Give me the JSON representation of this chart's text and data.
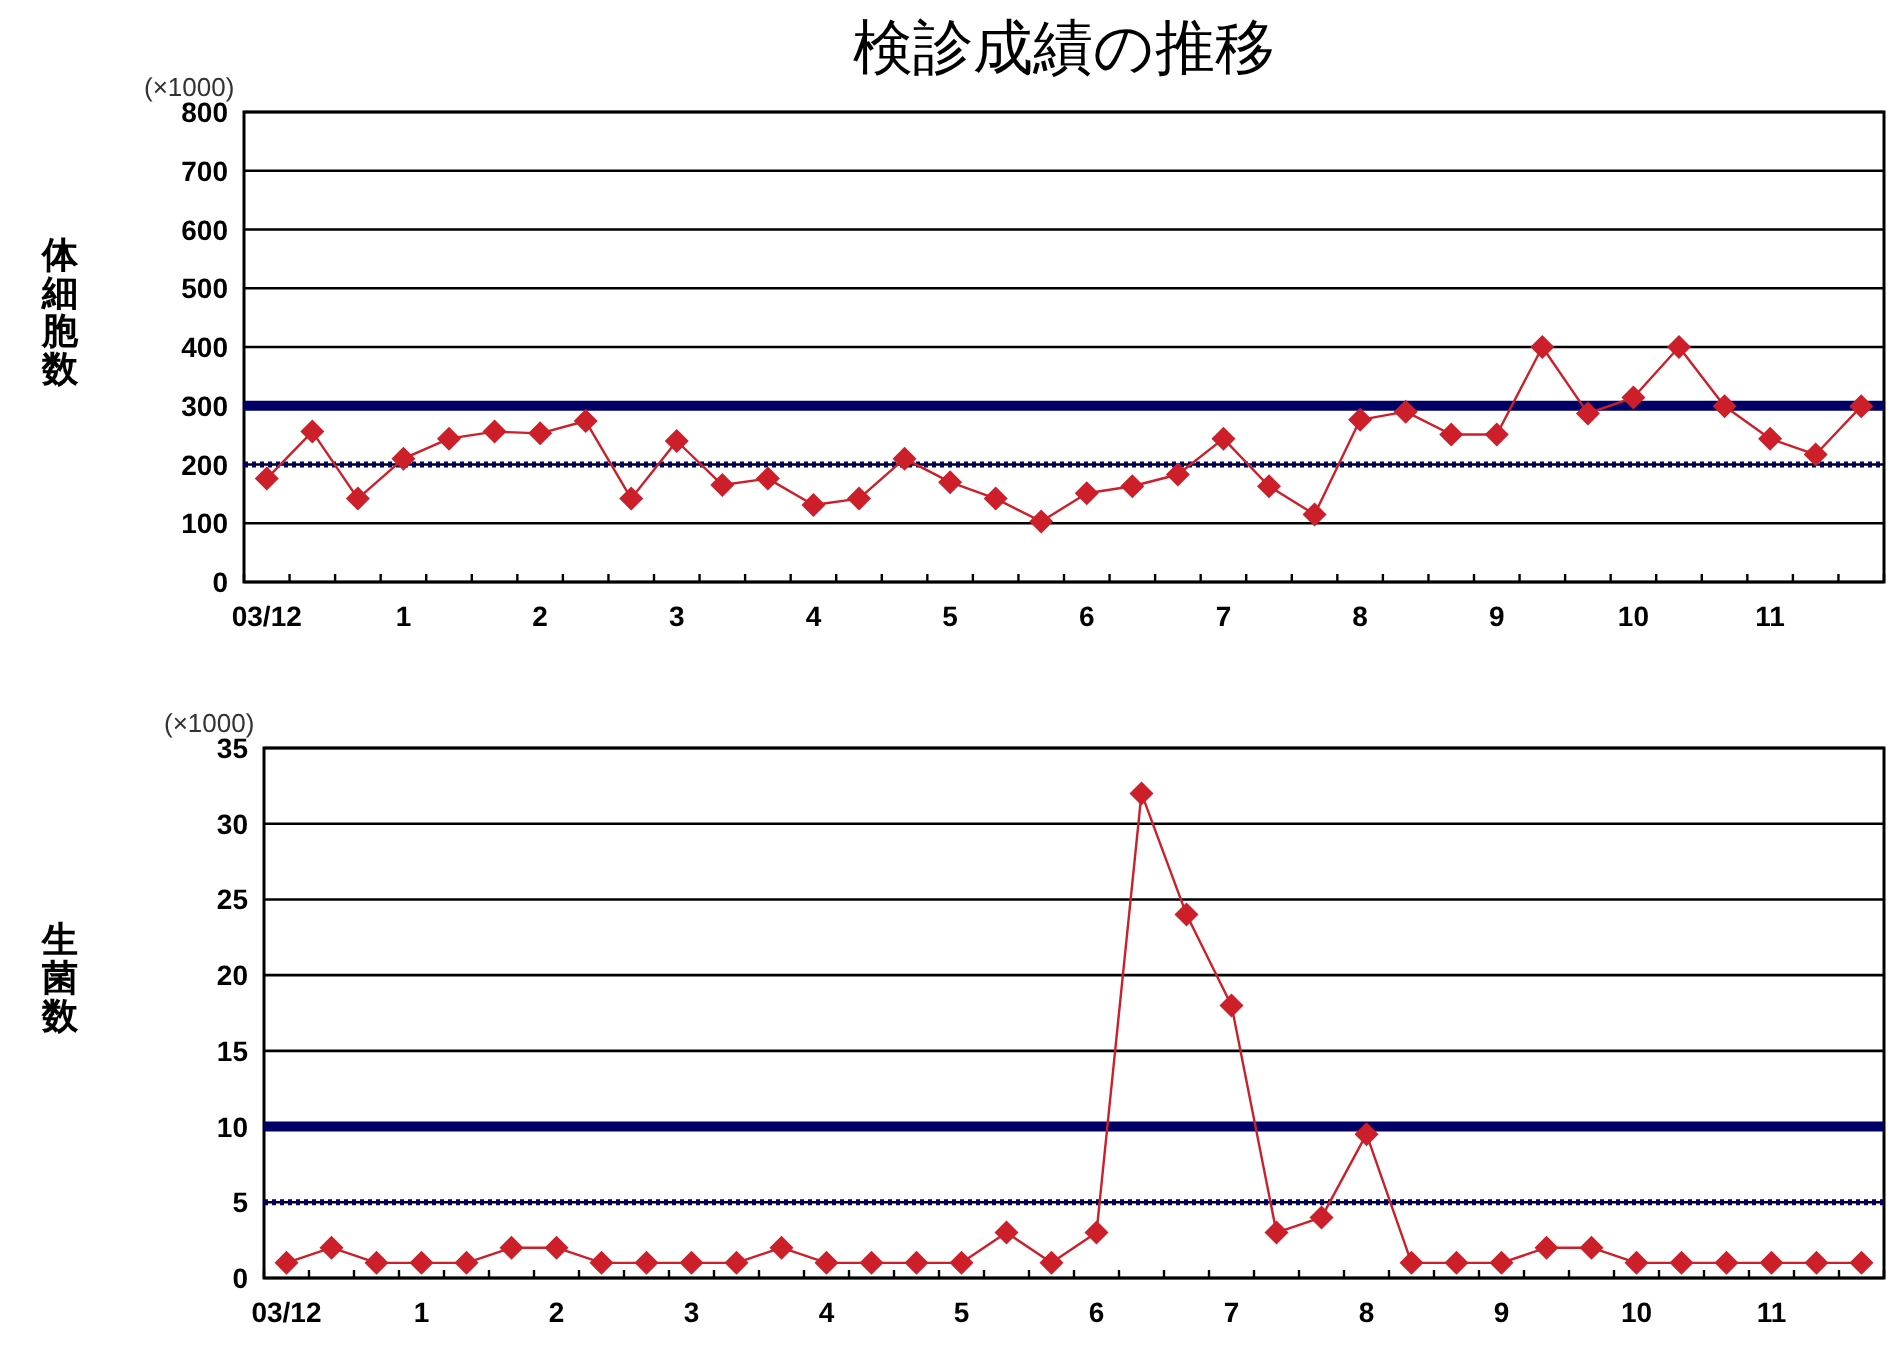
{
  "chart_data": [
    {
      "type": "line",
      "title": "検診成績の推移",
      "ylabel": "体細胞数",
      "annotations": [
        "(×1000)"
      ],
      "categories": [
        "03/12",
        null,
        null,
        "1",
        null,
        null,
        "2",
        null,
        null,
        "3",
        null,
        null,
        "4",
        null,
        null,
        "5",
        null,
        null,
        "6",
        null,
        null,
        "7",
        null,
        null,
        "8",
        null,
        null,
        "9",
        null,
        null,
        "10",
        null,
        null,
        "11",
        null,
        null
      ],
      "series": [
        {
          "color": "#cc1f2a",
          "values": [
            176,
            256,
            142,
            210,
            244,
            256,
            253,
            274,
            142,
            240,
            165,
            176,
            131,
            142,
            210,
            170,
            142,
            103,
            151,
            163,
            183,
            244,
            163,
            115,
            276,
            290,
            251,
            251,
            400,
            287,
            314,
            400,
            299,
            244,
            217,
            299
          ]
        }
      ],
      "ylim": [
        0,
        800
      ],
      "yticks": [
        0,
        100,
        200,
        300,
        400,
        500,
        600,
        700,
        800
      ],
      "grid": "y",
      "marker": "diamond",
      "line_style": "solid",
      "ref_lines": [
        {
          "axis": "y",
          "value": 300,
          "color": "#000066",
          "line_style": "solid"
        },
        {
          "axis": "y",
          "value": 200,
          "color": "#000066",
          "line_style": "dotted"
        }
      ]
    },
    {
      "type": "line",
      "ylabel": "生菌数",
      "annotations": [
        "(×1000)"
      ],
      "categories": [
        "03/12",
        null,
        null,
        "1",
        null,
        null,
        "2",
        null,
        null,
        "3",
        null,
        null,
        "4",
        null,
        null,
        "5",
        null,
        null,
        "6",
        null,
        null,
        "7",
        null,
        null,
        "8",
        null,
        null,
        "9",
        null,
        null,
        "10",
        null,
        null,
        "11",
        null,
        null
      ],
      "series": [
        {
          "color": "#cc1f2a",
          "values": [
            1,
            2,
            1,
            1,
            1,
            2,
            2,
            1,
            1,
            1,
            1,
            2,
            1,
            1,
            1,
            1,
            3,
            1,
            3,
            32,
            24,
            18,
            3,
            4,
            9.5,
            1,
            1,
            1,
            2,
            2,
            1,
            1,
            1,
            1,
            1,
            1
          ]
        }
      ],
      "ylim": [
        0,
        35
      ],
      "yticks": [
        0,
        5,
        10,
        15,
        20,
        25,
        30,
        35
      ],
      "grid": "y",
      "marker": "diamond",
      "line_style": "solid",
      "ref_lines": [
        {
          "axis": "y",
          "value": 10,
          "color": "#000066",
          "line_style": "solid"
        },
        {
          "axis": "y",
          "value": 5,
          "color": "#000066",
          "line_style": "dotted"
        }
      ]
    }
  ]
}
